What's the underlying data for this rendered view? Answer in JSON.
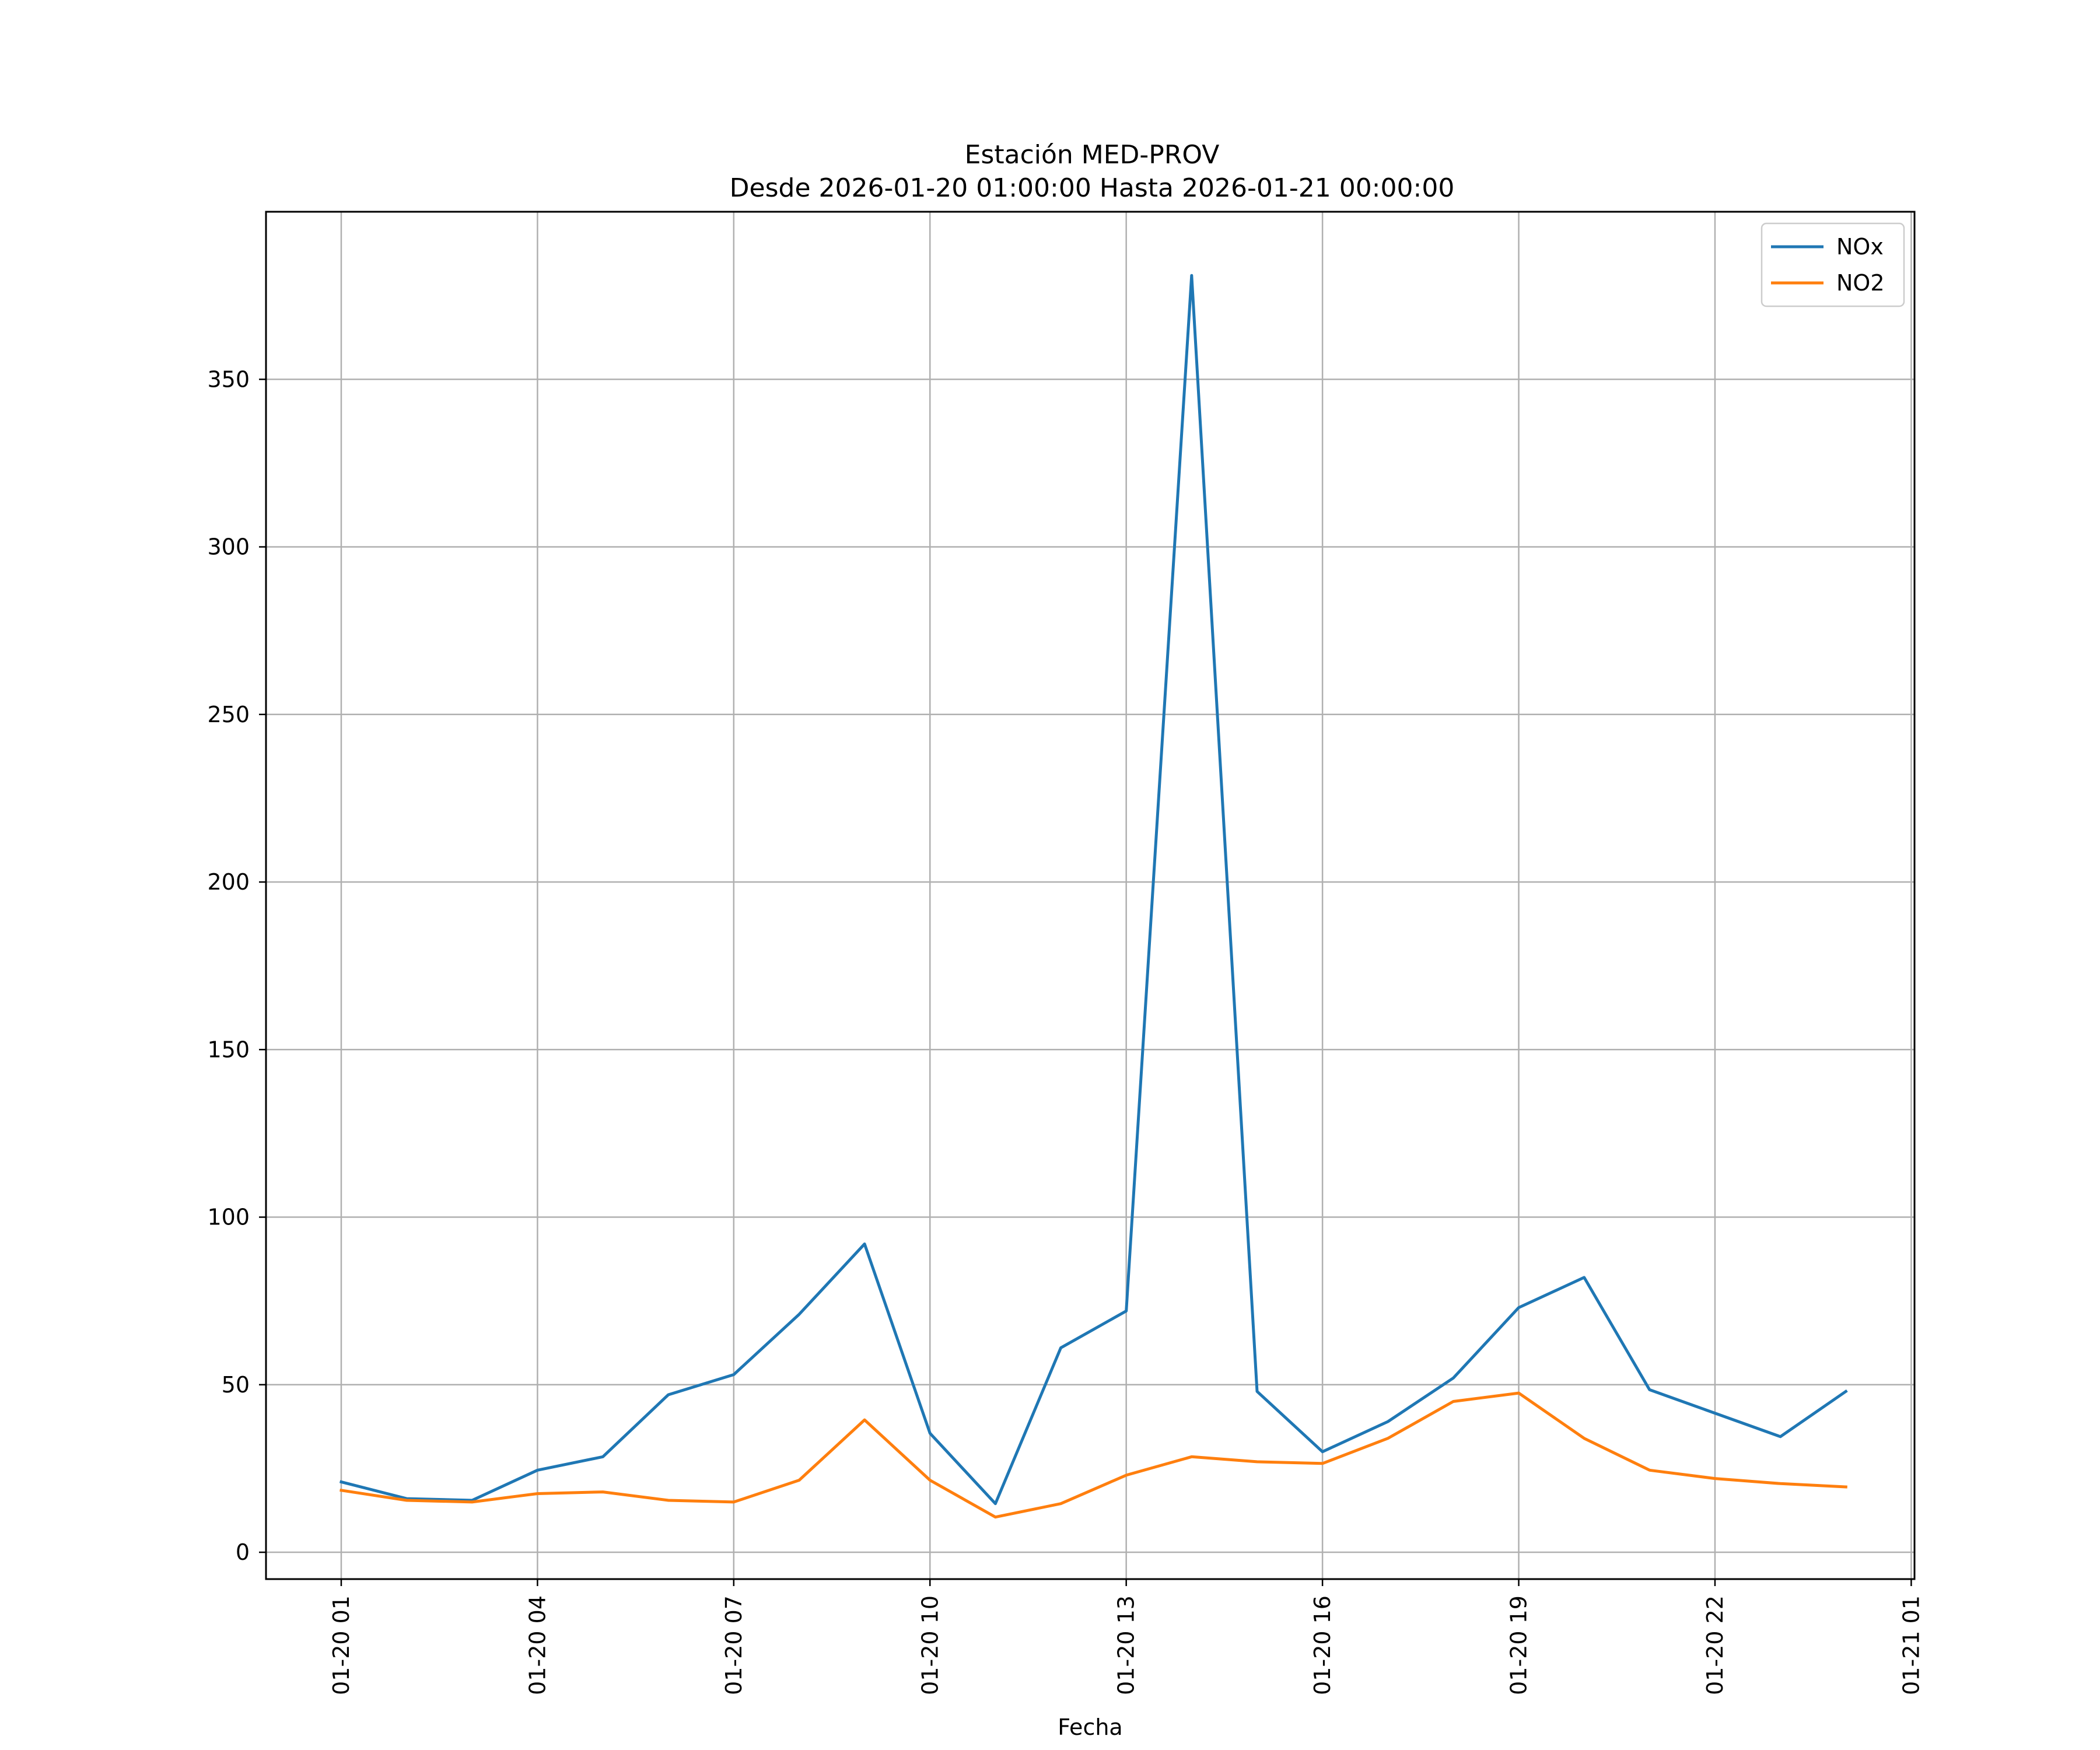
{
  "chart_data": {
    "type": "line",
    "title": "Estación MED-PROV",
    "subtitle": "Desde 2026-01-20 01:00:00 Hasta 2026-01-21 00:00:00",
    "xlabel": "Fecha",
    "ylabel": "",
    "ylim": [
      -8,
      400
    ],
    "y_ticks": [
      0,
      50,
      100,
      150,
      200,
      250,
      300,
      350
    ],
    "x": [
      "2026-01-20 01:00",
      "2026-01-20 02:00",
      "2026-01-20 03:00",
      "2026-01-20 04:00",
      "2026-01-20 05:00",
      "2026-01-20 06:00",
      "2026-01-20 07:00",
      "2026-01-20 08:00",
      "2026-01-20 09:00",
      "2026-01-20 10:00",
      "2026-01-20 11:00",
      "2026-01-20 12:00",
      "2026-01-20 13:00",
      "2026-01-20 14:00",
      "2026-01-20 15:00",
      "2026-01-20 16:00",
      "2026-01-20 17:00",
      "2026-01-20 18:00",
      "2026-01-20 19:00",
      "2026-01-20 20:00",
      "2026-01-20 21:00",
      "2026-01-20 22:00",
      "2026-01-20 23:00",
      "2026-01-21 00:00"
    ],
    "x_tick_labels": [
      "01-20 01",
      "01-20 04",
      "01-20 07",
      "01-20 10",
      "01-20 13",
      "01-20 16",
      "01-20 19",
      "01-20 22",
      "01-21 01"
    ],
    "x_tick_hours": [
      1,
      4,
      7,
      10,
      13,
      16,
      19,
      22,
      25
    ],
    "xlim_hours": [
      -0.15,
      25.05
    ],
    "grid": true,
    "legend_position": "top-right",
    "series": [
      {
        "name": "NOx",
        "color": "#1f77b4",
        "values": [
          21,
          16,
          15.5,
          24.5,
          28.5,
          47,
          53,
          71,
          92,
          35.5,
          14.5,
          61,
          72,
          381,
          48,
          30,
          39,
          52,
          73,
          82,
          48.5,
          41.5,
          34.5,
          48
        ]
      },
      {
        "name": "NO2",
        "color": "#ff7f0e",
        "values": [
          18.5,
          15.5,
          15,
          17.5,
          18,
          15.5,
          15,
          21.5,
          39.5,
          21.5,
          10.5,
          14.5,
          23,
          28.5,
          27,
          26.5,
          34,
          45,
          47.5,
          34,
          24.5,
          22,
          20.5,
          19.5
        ]
      }
    ]
  }
}
